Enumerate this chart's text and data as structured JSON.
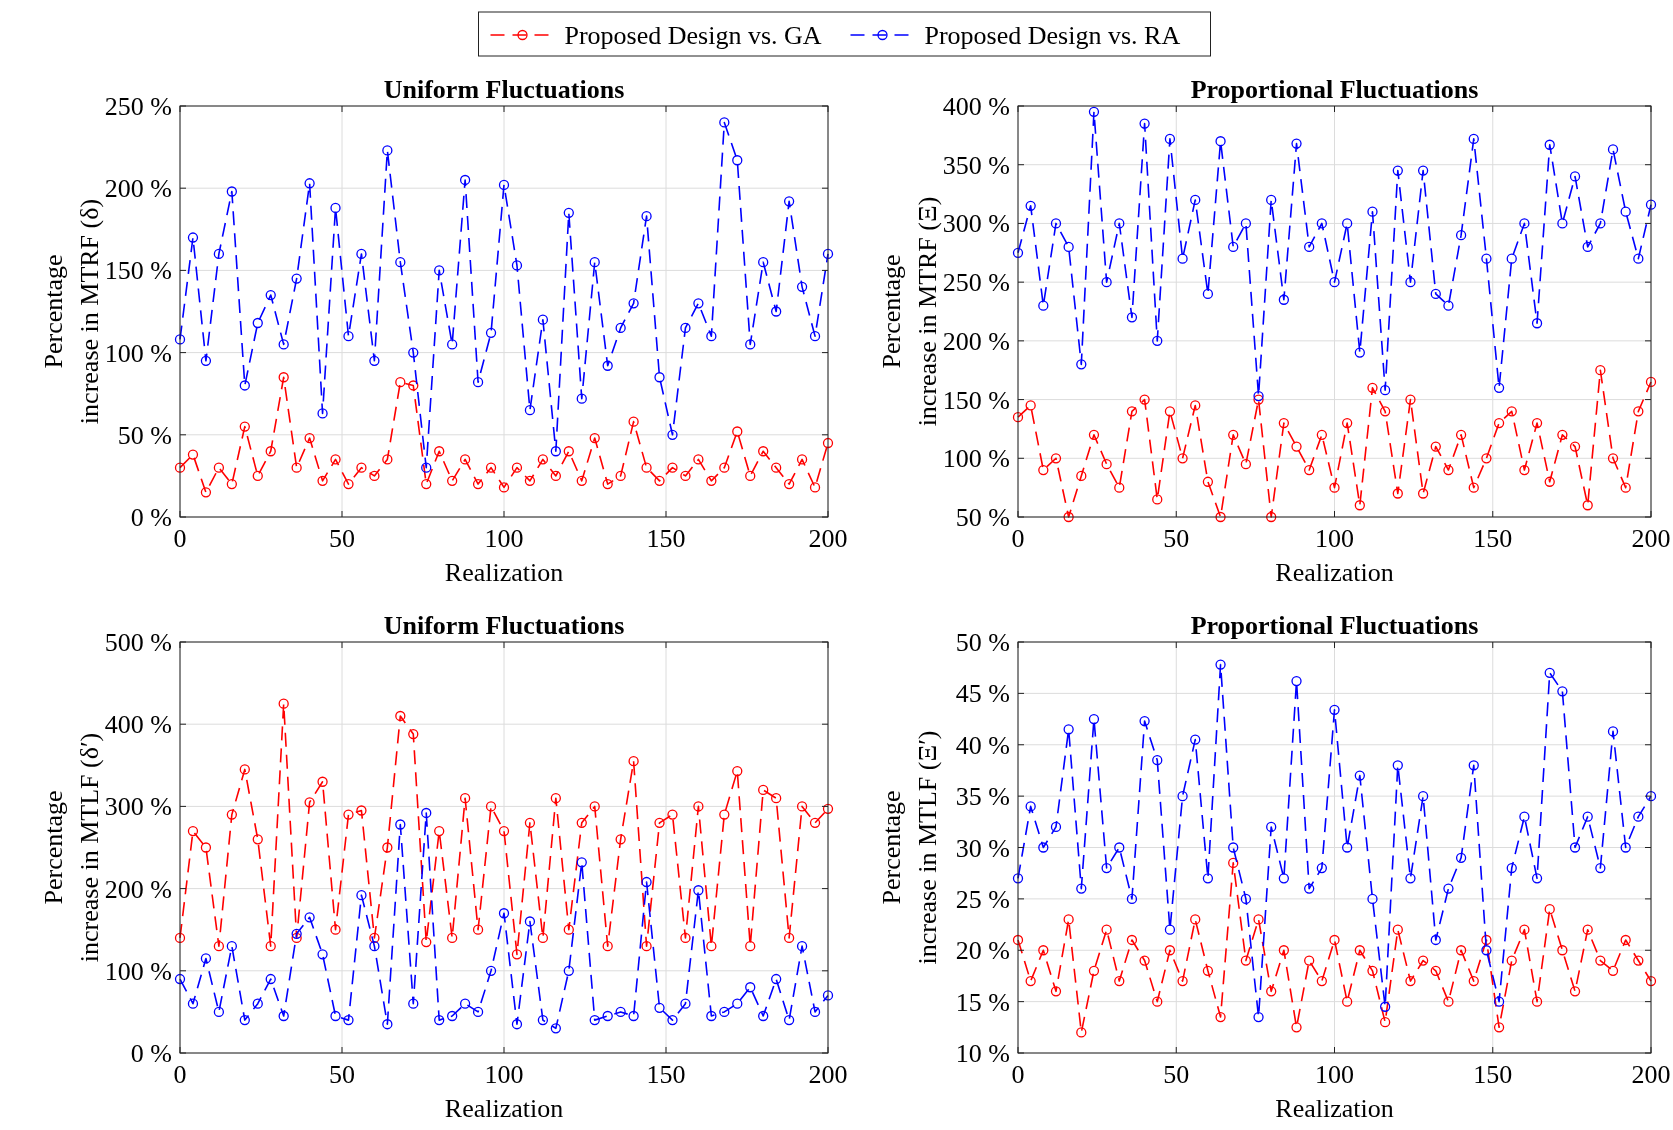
{
  "chart_data": [
    {
      "type": "line",
      "title": "Uniform Fluctuations",
      "xlabel": "Realization",
      "ylabel": "Percentage increase  in MTRF (δ)",
      "xlim": [
        0,
        200
      ],
      "xticks": [
        0,
        50,
        100,
        150,
        200
      ],
      "ylim": [
        0,
        250
      ],
      "yticks": [
        {
          "value": 0,
          "label": "0 %"
        },
        {
          "value": 50,
          "label": "50 %"
        },
        {
          "value": 100,
          "label": "100 %"
        },
        {
          "value": 150,
          "label": "150 %"
        },
        {
          "value": 200,
          "label": "200 %"
        },
        {
          "value": 250,
          "label": "250 %"
        }
      ],
      "grid": true,
      "legend": "top",
      "marker": "circle",
      "line_style": "dashed",
      "x": [
        0,
        4,
        8,
        12,
        16,
        20,
        24,
        28,
        32,
        36,
        40,
        44,
        48,
        52,
        56,
        60,
        64,
        68,
        72,
        76,
        80,
        84,
        88,
        92,
        96,
        100,
        104,
        108,
        112,
        116,
        120,
        124,
        128,
        132,
        136,
        140,
        144,
        148,
        152,
        156,
        160,
        164,
        168,
        172,
        176,
        180,
        184,
        188,
        192,
        196,
        200
      ],
      "series": [
        {
          "name": "Proposed Design vs. GA",
          "color": "#ff0000",
          "values": [
            30,
            38,
            15,
            30,
            20,
            55,
            25,
            40,
            85,
            30,
            48,
            22,
            35,
            20,
            30,
            25,
            35,
            82,
            80,
            20,
            40,
            22,
            35,
            20,
            30,
            18,
            30,
            22,
            35,
            25,
            40,
            22,
            48,
            20,
            25,
            58,
            30,
            22,
            30,
            25,
            35,
            22,
            30,
            52,
            25,
            40,
            30,
            20,
            35,
            18,
            45
          ]
        },
        {
          "name": "Proposed Design vs. RA",
          "color": "#0000ff",
          "values": [
            108,
            170,
            95,
            160,
            198,
            80,
            118,
            135,
            105,
            145,
            203,
            63,
            188,
            110,
            160,
            95,
            223,
            155,
            100,
            30,
            150,
            105,
            205,
            82,
            112,
            202,
            153,
            65,
            120,
            40,
            185,
            72,
            155,
            92,
            115,
            130,
            183,
            85,
            50,
            115,
            130,
            110,
            240,
            217,
            105,
            155,
            125,
            192,
            140,
            110,
            160
          ]
        }
      ]
    },
    {
      "type": "line",
      "title": "Proportional Fluctuations",
      "xlabel": "Realization",
      "ylabel": "Percentage increase  in MTRF (Ξ)",
      "xlim": [
        0,
        200
      ],
      "xticks": [
        0,
        50,
        100,
        150,
        200
      ],
      "ylim": [
        50,
        400
      ],
      "yticks": [
        {
          "value": 50,
          "label": "50 %"
        },
        {
          "value": 100,
          "label": "100 %"
        },
        {
          "value": 150,
          "label": "150 %"
        },
        {
          "value": 200,
          "label": "200 %"
        },
        {
          "value": 250,
          "label": "250 %"
        },
        {
          "value": 300,
          "label": "300 %"
        },
        {
          "value": 350,
          "label": "350 %"
        },
        {
          "value": 400,
          "label": "400 %"
        }
      ],
      "grid": true,
      "marker": "circle",
      "line_style": "dashed",
      "x": [
        0,
        4,
        8,
        12,
        16,
        20,
        24,
        28,
        32,
        36,
        40,
        44,
        48,
        52,
        56,
        60,
        64,
        68,
        72,
        76,
        80,
        84,
        88,
        92,
        96,
        100,
        104,
        108,
        112,
        116,
        120,
        124,
        128,
        132,
        136,
        140,
        144,
        148,
        152,
        156,
        160,
        164,
        168,
        172,
        176,
        180,
        184,
        188,
        192,
        196,
        200
      ],
      "series": [
        {
          "color": "#ff0000",
          "values": [
            135,
            145,
            90,
            100,
            50,
            85,
            120,
            95,
            75,
            140,
            150,
            65,
            140,
            100,
            145,
            80,
            50,
            120,
            95,
            150,
            50,
            130,
            110,
            90,
            120,
            75,
            130,
            60,
            160,
            140,
            70,
            150,
            70,
            110,
            90,
            120,
            75,
            100,
            130,
            140,
            90,
            130,
            80,
            120,
            110,
            60,
            175,
            100,
            75,
            140,
            165
          ]
        },
        {
          "color": "#0000ff",
          "values": [
            275,
            315,
            230,
            300,
            280,
            180,
            395,
            250,
            300,
            220,
            385,
            200,
            372,
            270,
            320,
            240,
            370,
            280,
            300,
            153,
            320,
            235,
            368,
            280,
            300,
            250,
            300,
            190,
            310,
            158,
            345,
            250,
            345,
            240,
            230,
            290,
            372,
            270,
            160,
            270,
            300,
            215,
            367,
            300,
            340,
            280,
            300,
            363,
            310,
            270,
            316
          ]
        }
      ]
    },
    {
      "type": "line",
      "title": "Uniform Fluctuations",
      "xlabel": "Realization",
      "ylabel": "Percentage increase  in MTLF (δ′)",
      "xlim": [
        0,
        200
      ],
      "xticks": [
        0,
        50,
        100,
        150,
        200
      ],
      "ylim": [
        0,
        500
      ],
      "yticks": [
        {
          "value": 0,
          "label": "0 %"
        },
        {
          "value": 100,
          "label": "100 %"
        },
        {
          "value": 200,
          "label": "200 %"
        },
        {
          "value": 300,
          "label": "300 %"
        },
        {
          "value": 400,
          "label": "400 %"
        },
        {
          "value": 500,
          "label": "500 %"
        }
      ],
      "grid": true,
      "marker": "circle",
      "line_style": "dashed",
      "x": [
        0,
        4,
        8,
        12,
        16,
        20,
        24,
        28,
        32,
        36,
        40,
        44,
        48,
        52,
        56,
        60,
        64,
        68,
        72,
        76,
        80,
        84,
        88,
        92,
        96,
        100,
        104,
        108,
        112,
        116,
        120,
        124,
        128,
        132,
        136,
        140,
        144,
        148,
        152,
        156,
        160,
        164,
        168,
        172,
        176,
        180,
        184,
        188,
        192,
        196,
        200
      ],
      "series": [
        {
          "color": "#ff0000",
          "values": [
            140,
            270,
            250,
            130,
            290,
            345,
            260,
            130,
            425,
            140,
            305,
            330,
            150,
            290,
            295,
            140,
            250,
            410,
            388,
            135,
            270,
            140,
            310,
            150,
            300,
            270,
            120,
            280,
            140,
            310,
            150,
            280,
            300,
            130,
            260,
            355,
            130,
            280,
            290,
            140,
            300,
            130,
            290,
            343,
            130,
            320,
            310,
            140,
            300,
            280,
            297
          ]
        },
        {
          "color": "#0000ff",
          "values": [
            90,
            60,
            115,
            50,
            130,
            40,
            60,
            90,
            45,
            145,
            165,
            120,
            45,
            40,
            192,
            130,
            35,
            278,
            60,
            292,
            40,
            45,
            60,
            50,
            100,
            170,
            35,
            160,
            40,
            30,
            100,
            232,
            40,
            45,
            50,
            45,
            208,
            55,
            40,
            60,
            198,
            45,
            50,
            60,
            80,
            45,
            90,
            40,
            130,
            50,
            70
          ]
        }
      ]
    },
    {
      "type": "line",
      "title": "Proportional Fluctuations",
      "xlabel": "Realization",
      "ylabel": "Percentage increase  in MTLF (Ξ′)",
      "xlim": [
        0,
        200
      ],
      "xticks": [
        0,
        50,
        100,
        150,
        200
      ],
      "ylim": [
        10,
        50
      ],
      "yticks": [
        {
          "value": 10,
          "label": "10 %"
        },
        {
          "value": 15,
          "label": "15 %"
        },
        {
          "value": 20,
          "label": "20 %"
        },
        {
          "value": 25,
          "label": "25 %"
        },
        {
          "value": 30,
          "label": "30 %"
        },
        {
          "value": 35,
          "label": "35 %"
        },
        {
          "value": 40,
          "label": "40 %"
        },
        {
          "value": 45,
          "label": "45 %"
        },
        {
          "value": 50,
          "label": "50 %"
        }
      ],
      "grid": true,
      "marker": "circle",
      "line_style": "dashed",
      "x": [
        0,
        4,
        8,
        12,
        16,
        20,
        24,
        28,
        32,
        36,
        40,
        44,
        48,
        52,
        56,
        60,
        64,
        68,
        72,
        76,
        80,
        84,
        88,
        92,
        96,
        100,
        104,
        108,
        112,
        116,
        120,
        124,
        128,
        132,
        136,
        140,
        144,
        148,
        152,
        156,
        160,
        164,
        168,
        172,
        176,
        180,
        184,
        188,
        192,
        196,
        200
      ],
      "series": [
        {
          "color": "#ff0000",
          "values": [
            21,
            17,
            20,
            16,
            23,
            12,
            18,
            22,
            17,
            21,
            19,
            15,
            20,
            17,
            23,
            18,
            13.5,
            28.5,
            19,
            23,
            16,
            20,
            12.5,
            19,
            17,
            21,
            15,
            20,
            18,
            13,
            22,
            17,
            19,
            18,
            15,
            20,
            17,
            21,
            12.5,
            19,
            22,
            15,
            24,
            20,
            16,
            22,
            19,
            18,
            21,
            19,
            17
          ]
        },
        {
          "color": "#0000ff",
          "values": [
            27,
            34,
            30,
            32,
            41.5,
            26,
            42.5,
            28,
            30,
            25,
            42.3,
            38.5,
            22,
            35,
            40.5,
            27,
            47.8,
            30,
            25,
            13.5,
            32,
            27,
            46.2,
            26,
            28,
            43.4,
            30,
            37,
            25,
            14.5,
            38,
            27,
            35,
            21,
            26,
            29,
            38,
            20,
            15,
            28,
            33,
            27,
            47,
            45.2,
            30,
            33,
            28,
            41.3,
            30,
            33,
            35
          ]
        }
      ]
    }
  ]
}
